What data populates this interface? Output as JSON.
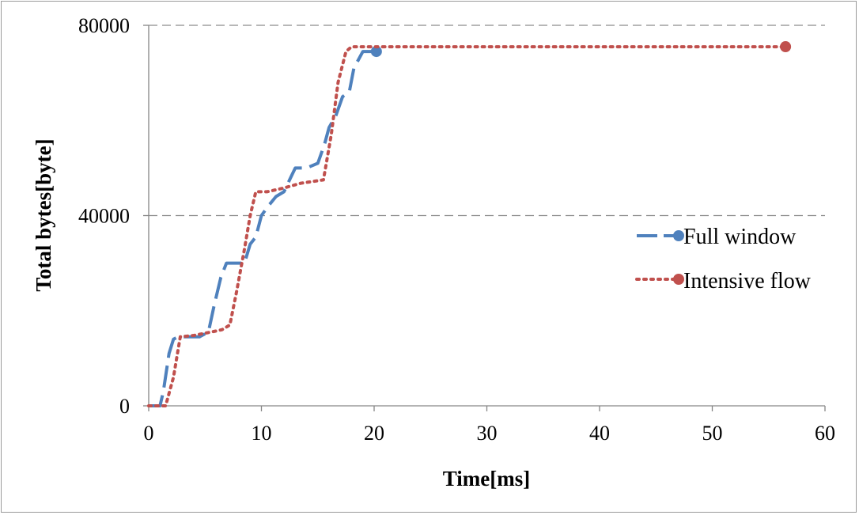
{
  "chart_data": {
    "type": "line",
    "xlabel": "Time[ms]",
    "ylabel": "Total bytes[byte]",
    "xlim": [
      0,
      60
    ],
    "ylim": [
      0,
      80000
    ],
    "xticks": [
      "0",
      "10",
      "20",
      "30",
      "40",
      "50",
      "60"
    ],
    "yticks": [
      "0",
      "40000",
      "80000"
    ],
    "grid": "horizontal dashed",
    "legend_position": "right",
    "series": [
      {
        "name": "Full window",
        "color": "#4f81bd",
        "style": "dashed",
        "marker": "end-circle",
        "x": [
          0,
          1.0,
          1.3,
          1.8,
          2.2,
          2.6,
          3.0,
          4.5,
          5.3,
          5.8,
          6.4,
          6.9,
          7.4,
          8.5,
          9.0,
          9.5,
          10.0,
          10.6,
          11.3,
          12.0,
          12.5,
          13.0,
          14.0,
          15.0,
          15.6,
          16.0,
          16.6,
          17.2,
          17.8,
          18.2,
          19.0,
          20.2
        ],
        "y": [
          0,
          0,
          3000,
          11000,
          14000,
          14500,
          14500,
          14500,
          15500,
          21000,
          27000,
          30000,
          30000,
          30000,
          34000,
          35500,
          40000,
          42000,
          44000,
          45000,
          47500,
          50000,
          50000,
          51000,
          55000,
          58500,
          61000,
          65000,
          66000,
          71000,
          74500,
          74500
        ]
      },
      {
        "name": "Intensive flow",
        "color": "#c0504d",
        "style": "dotted",
        "marker": "end-circle",
        "x": [
          0,
          1.0,
          1.5,
          2.2,
          2.8,
          4.0,
          5.5,
          6.5,
          7.2,
          7.8,
          8.5,
          9.0,
          9.5,
          10.5,
          12.0,
          13.5,
          15.5,
          16.2,
          16.8,
          17.5,
          18.0,
          20.0,
          30.0,
          40.0,
          50.0,
          56.5
        ],
        "y": [
          0,
          0,
          0,
          6000,
          14500,
          14800,
          15500,
          16000,
          17000,
          24000,
          33000,
          40000,
          45000,
          45000,
          45800,
          46800,
          47500,
          57000,
          68000,
          74500,
          75500,
          75500,
          75500,
          75500,
          75500,
          75500
        ]
      }
    ]
  }
}
